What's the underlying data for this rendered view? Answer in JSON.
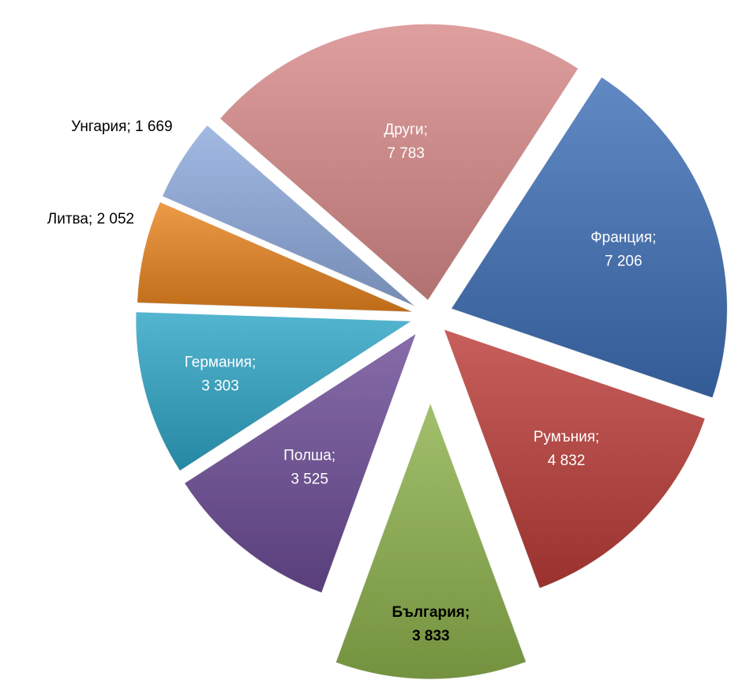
{
  "chart_data": {
    "type": "pie",
    "categories": [
      "Франция",
      "Румъния",
      "България",
      "Полша",
      "Германия",
      "Литва",
      "Унгария",
      "Други"
    ],
    "values": [
      7206,
      4832,
      3833,
      3525,
      3303,
      2052,
      1669,
      7783
    ],
    "value_labels": [
      "7 206",
      "4 832",
      "3 833",
      "3 525",
      "3 303",
      "2 052",
      "1 669",
      "7 783"
    ],
    "label_separator": ";",
    "colors": [
      "#3e6fb6",
      "#bb3c38",
      "#8db24c",
      "#6c4c96",
      "#2ea5c6",
      "#e9841f",
      "#8eabdd",
      "#d88a8a"
    ]
  }
}
